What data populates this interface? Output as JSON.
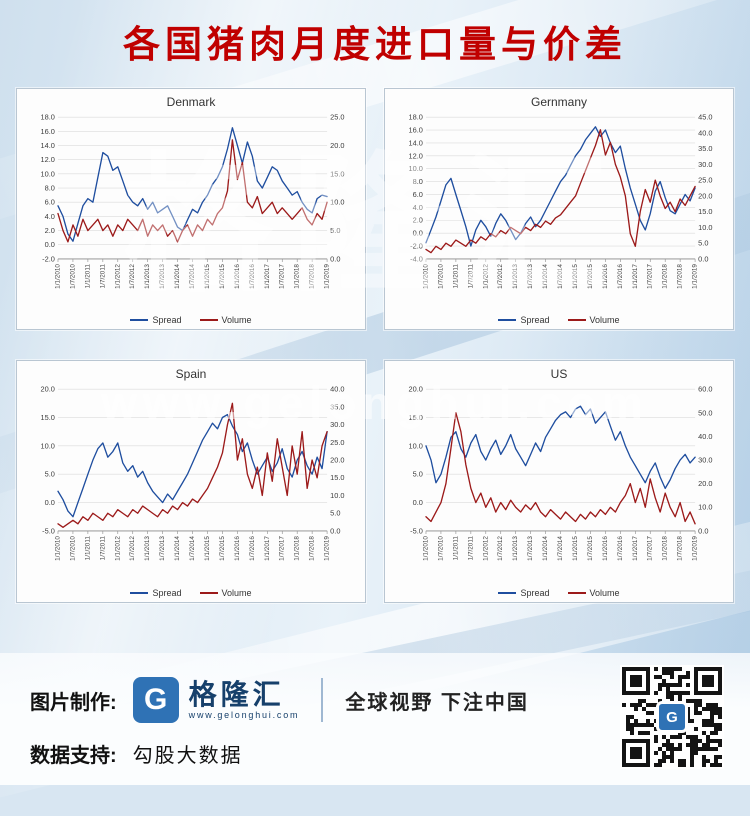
{
  "page": {
    "title": "各国猪肉月度进口量与价差"
  },
  "watermarks": {
    "brand": "格隆汇",
    "url": "www.gelonghui.com"
  },
  "chart_data": [
    {
      "type": "line",
      "title": "Denmark",
      "left_axis": {
        "min": -2,
        "max": 18,
        "step": 2
      },
      "right_axis": {
        "min": 0,
        "max": 25,
        "step": 5
      },
      "x_labels": [
        "1/1/2010",
        "1/7/2010",
        "1/1/2011",
        "1/7/2011",
        "1/1/2012",
        "1/7/2012",
        "1/1/2013",
        "1/7/2013",
        "1/1/2014",
        "1/7/2014",
        "1/1/2015",
        "1/7/2015",
        "1/1/2016",
        "1/7/2016",
        "1/1/2017",
        "1/7/2017",
        "1/1/2018",
        "1/7/2018",
        "1/1/2019"
      ],
      "series": [
        {
          "name": "Spread",
          "axis": "left",
          "color": "#1f4e9f",
          "values": [
            5.5,
            4.0,
            1.5,
            0.5,
            3.0,
            5.5,
            6.5,
            6.0,
            9.5,
            13.0,
            12.5,
            10.5,
            11.0,
            9.0,
            7.0,
            6.0,
            5.5,
            6.5,
            5.0,
            6.0,
            4.5,
            5.0,
            5.5,
            4.0,
            2.5,
            2.0,
            3.5,
            5.0,
            4.5,
            6.0,
            7.0,
            8.5,
            9.5,
            11.0,
            13.5,
            16.5,
            14.0,
            11.5,
            14.5,
            12.5,
            9.0,
            8.0,
            9.5,
            11.0,
            10.5,
            9.0,
            8.0,
            7.0,
            7.5,
            6.0,
            5.0,
            4.5,
            6.5,
            7.0,
            6.8
          ]
        },
        {
          "name": "Volume",
          "axis": "right",
          "color": "#9c1a1a",
          "values": [
            8,
            5,
            3,
            6,
            4,
            7,
            5,
            6,
            7,
            5,
            6,
            4,
            6,
            5,
            7,
            6,
            5,
            7,
            4,
            6,
            5,
            6,
            4,
            5,
            3,
            5,
            6,
            4,
            6,
            5,
            7,
            6,
            8,
            9,
            12,
            21,
            14,
            17,
            10,
            9,
            11,
            8,
            9,
            10,
            8,
            9,
            8,
            7,
            8,
            9,
            7,
            6,
            8,
            7,
            10
          ]
        }
      ]
    },
    {
      "type": "line",
      "title": "Gernmany",
      "left_axis": {
        "min": -4,
        "max": 18,
        "step": 2
      },
      "right_axis": {
        "min": 0,
        "max": 45,
        "step": 5
      },
      "x_labels": [
        "1/1/2010",
        "1/7/2010",
        "1/1/2011",
        "1/7/2011",
        "1/1/2012",
        "1/7/2012",
        "1/1/2013",
        "1/7/2013",
        "1/1/2014",
        "1/7/2014",
        "1/1/2015",
        "1/7/2015",
        "1/1/2016",
        "1/7/2016",
        "1/1/2017",
        "1/7/2017",
        "1/1/2018",
        "1/7/2018",
        "1/1/2019"
      ],
      "series": [
        {
          "name": "Spread",
          "axis": "left",
          "color": "#1f4e9f",
          "values": [
            -1.5,
            0.5,
            2.5,
            5.0,
            7.5,
            8.5,
            6.0,
            3.5,
            1.0,
            -2.0,
            0.5,
            2.0,
            1.0,
            -0.5,
            1.5,
            3.0,
            2.0,
            0.5,
            -1.0,
            0.0,
            1.5,
            2.5,
            1.0,
            2.0,
            3.5,
            5.0,
            6.5,
            8.0,
            9.0,
            10.5,
            12.0,
            13.0,
            14.5,
            15.5,
            16.5,
            15.0,
            16.0,
            14.0,
            12.5,
            13.5,
            10.0,
            7.0,
            4.5,
            2.0,
            0.5,
            3.0,
            6.5,
            8.0,
            5.5,
            3.5,
            3.0,
            4.5,
            6.0,
            5.0,
            7.0
          ]
        },
        {
          "name": "Volume",
          "axis": "right",
          "color": "#9c1a1a",
          "values": [
            3,
            2,
            4,
            3,
            5,
            4,
            6,
            5,
            4,
            6,
            5,
            7,
            6,
            8,
            7,
            9,
            8,
            10,
            9,
            8,
            10,
            9,
            11,
            10,
            12,
            11,
            13,
            14,
            16,
            18,
            20,
            24,
            28,
            32,
            36,
            41,
            33,
            37,
            30,
            26,
            20,
            8,
            4,
            15,
            22,
            18,
            25,
            20,
            16,
            18,
            15,
            19,
            17,
            20,
            23
          ]
        }
      ]
    },
    {
      "type": "line",
      "title": "Spain",
      "left_axis": {
        "min": -5,
        "max": 20,
        "step": 5
      },
      "right_axis": {
        "min": 0,
        "max": 40,
        "step": 5
      },
      "x_labels": [
        "1/1/2010",
        "1/7/2010",
        "1/1/2011",
        "1/7/2011",
        "1/1/2012",
        "1/7/2012",
        "1/1/2013",
        "1/7/2013",
        "1/1/2014",
        "1/7/2014",
        "1/1/2015",
        "1/7/2015",
        "1/1/2016",
        "1/7/2016",
        "1/1/2017",
        "1/7/2017",
        "1/1/2018",
        "1/7/2018",
        "1/1/2019"
      ],
      "series": [
        {
          "name": "Spread",
          "axis": "left",
          "color": "#1f4e9f",
          "values": [
            2.0,
            0.5,
            -1.5,
            -2.5,
            0.0,
            2.5,
            5.0,
            7.5,
            9.5,
            10.5,
            8.0,
            9.0,
            10.5,
            7.0,
            5.5,
            6.5,
            4.5,
            5.5,
            3.5,
            2.0,
            1.0,
            0.0,
            1.5,
            0.5,
            2.0,
            3.5,
            5.0,
            7.0,
            9.0,
            11.0,
            12.5,
            14.0,
            13.0,
            15.0,
            15.5,
            13.5,
            12.0,
            9.0,
            10.5,
            7.5,
            5.0,
            6.5,
            8.0,
            5.5,
            7.0,
            9.5,
            6.0,
            4.5,
            7.5,
            9.0,
            6.5,
            5.0,
            8.0,
            6.0,
            12.5
          ]
        },
        {
          "name": "Volume",
          "axis": "right",
          "color": "#9c1a1a",
          "values": [
            2,
            1,
            2,
            3,
            2,
            4,
            3,
            5,
            4,
            3,
            5,
            4,
            6,
            5,
            4,
            6,
            5,
            7,
            6,
            5,
            4,
            6,
            5,
            7,
            6,
            8,
            7,
            9,
            8,
            10,
            12,
            15,
            18,
            22,
            30,
            36,
            20,
            26,
            16,
            12,
            18,
            10,
            22,
            14,
            26,
            18,
            10,
            24,
            16,
            28,
            12,
            20,
            15,
            24,
            28
          ]
        }
      ]
    },
    {
      "type": "line",
      "title": "US",
      "left_axis": {
        "min": -5,
        "max": 20,
        "step": 5
      },
      "right_axis": {
        "min": 0,
        "max": 60,
        "step": 10
      },
      "x_labels": [
        "1/1/2010",
        "1/7/2010",
        "1/1/2011",
        "1/7/2011",
        "1/1/2012",
        "1/7/2012",
        "1/1/2013",
        "1/7/2013",
        "1/1/2014",
        "1/7/2014",
        "1/1/2015",
        "1/7/2015",
        "1/1/2016",
        "1/7/2016",
        "1/1/2017",
        "1/7/2017",
        "1/1/2018",
        "1/7/2018",
        "1/1/2019"
      ],
      "series": [
        {
          "name": "Spread",
          "axis": "left",
          "color": "#1f4e9f",
          "values": [
            10.0,
            7.5,
            3.5,
            5.0,
            8.0,
            11.5,
            12.5,
            9.5,
            8.0,
            10.5,
            12.0,
            9.0,
            7.5,
            9.5,
            11.0,
            8.5,
            10.0,
            12.0,
            9.5,
            8.0,
            6.5,
            8.5,
            10.5,
            9.0,
            11.5,
            13.0,
            14.5,
            15.5,
            16.0,
            15.0,
            16.5,
            17.0,
            15.5,
            16.5,
            14.0,
            15.0,
            16.0,
            13.5,
            11.0,
            12.5,
            10.0,
            8.0,
            6.5,
            5.0,
            3.5,
            5.5,
            7.0,
            4.5,
            2.5,
            4.0,
            6.0,
            7.5,
            8.5,
            7.0,
            8.0
          ]
        },
        {
          "name": "Volume",
          "axis": "right",
          "color": "#9c1a1a",
          "values": [
            6,
            4,
            8,
            12,
            20,
            35,
            50,
            42,
            28,
            18,
            12,
            16,
            10,
            14,
            8,
            12,
            9,
            13,
            10,
            8,
            11,
            9,
            12,
            8,
            6,
            9,
            7,
            5,
            8,
            6,
            4,
            7,
            5,
            8,
            6,
            9,
            7,
            10,
            8,
            12,
            15,
            20,
            12,
            18,
            10,
            22,
            14,
            8,
            16,
            10,
            6,
            12,
            4,
            8,
            3
          ]
        }
      ]
    }
  ],
  "footer": {
    "made_by_label": "图片制作:",
    "brand_name": "格隆汇",
    "brand_url": "www.gelonghui.com",
    "logo_letter": "G",
    "slogan": "全球视野 下注中国",
    "data_support_label": "数据支持:",
    "data_support_value": "勾股大数据"
  }
}
